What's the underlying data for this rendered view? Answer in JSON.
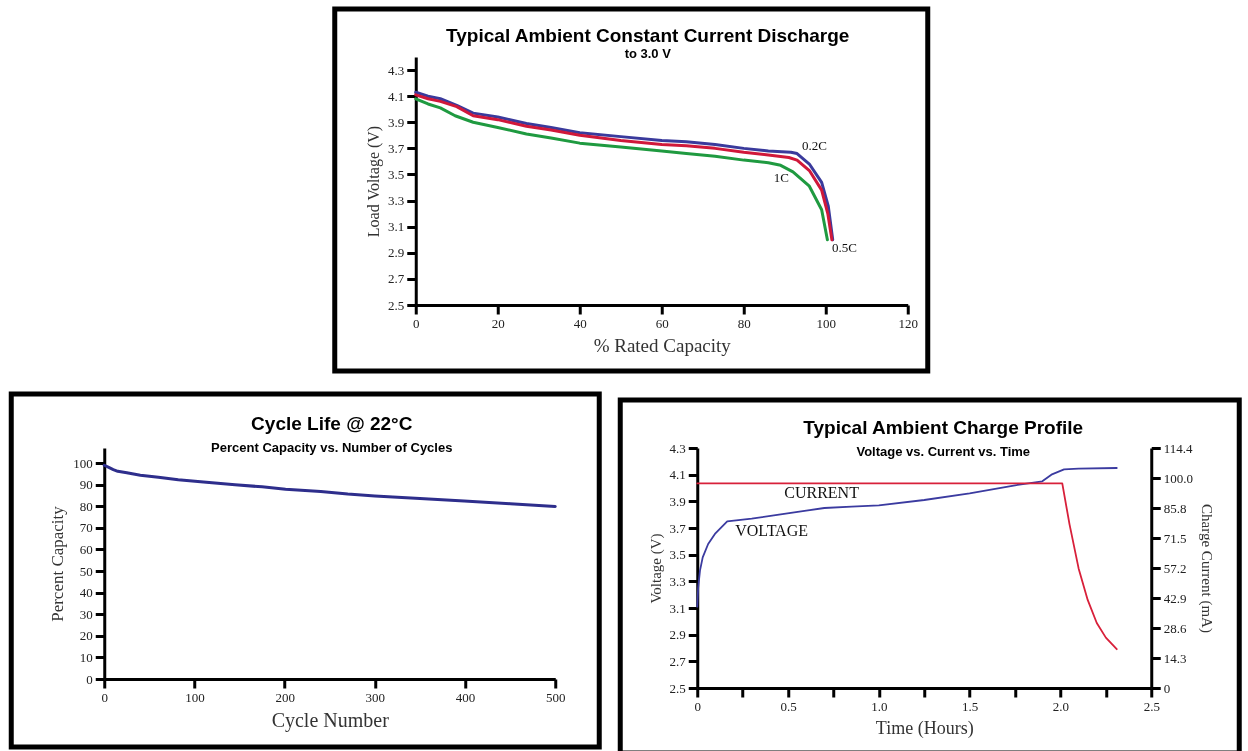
{
  "chart_data": [
    {
      "type": "line",
      "title": "Typical Ambient Constant Current Discharge",
      "subtitle": "to 3.0 V",
      "xlabel": "% Rated Capacity",
      "ylabel": "Load Voltage (V)",
      "xlim": [
        0,
        120
      ],
      "ylim": [
        2.5,
        4.4
      ],
      "xticks": [
        0,
        20,
        40,
        60,
        80,
        100,
        120
      ],
      "yticks": [
        2.5,
        2.7,
        2.9,
        3.1,
        3.3,
        3.5,
        3.7,
        3.9,
        4.1,
        4.3
      ],
      "series": [
        {
          "name": "0.2C",
          "color": "#3a3a9c",
          "x": [
            0,
            3,
            6,
            10,
            14,
            20,
            27,
            33,
            40,
            50,
            60,
            66,
            73,
            80,
            86,
            91.5,
            93,
            96,
            99,
            100.6,
            101.7
          ],
          "values": [
            4.13,
            4.1,
            4.08,
            4.03,
            3.97,
            3.94,
            3.89,
            3.86,
            3.82,
            3.79,
            3.76,
            3.75,
            3.73,
            3.7,
            3.68,
            3.67,
            3.66,
            3.58,
            3.44,
            3.26,
            3.0
          ]
        },
        {
          "name": "0.5C",
          "color": "#d0183a",
          "x": [
            0,
            3,
            6,
            10,
            14,
            20,
            27,
            33,
            40,
            50,
            60,
            66,
            73,
            80,
            86,
            91,
            93,
            96,
            99,
            100.5,
            101.5
          ],
          "values": [
            4.11,
            4.08,
            4.06,
            4.02,
            3.95,
            3.92,
            3.87,
            3.84,
            3.8,
            3.76,
            3.73,
            3.72,
            3.7,
            3.67,
            3.65,
            3.63,
            3.61,
            3.53,
            3.38,
            3.2,
            3.0
          ]
        },
        {
          "name": "1C",
          "color": "#1f9a40",
          "x": [
            0,
            3,
            6,
            9.6,
            14,
            20,
            27,
            33,
            40,
            50,
            60,
            66,
            73,
            80,
            86,
            89,
            92,
            96,
            99,
            100.4
          ],
          "values": [
            4.08,
            4.04,
            4.01,
            3.95,
            3.9,
            3.86,
            3.81,
            3.78,
            3.74,
            3.71,
            3.68,
            3.66,
            3.64,
            3.61,
            3.59,
            3.57,
            3.52,
            3.41,
            3.23,
            3.0
          ]
        }
      ]
    },
    {
      "type": "line",
      "title": "Cycle Life @ 22°C",
      "subtitle": "Percent Capacity vs. Number of Cycles",
      "xlabel": "Cycle Number",
      "ylabel": "Percent Capacity",
      "xlim": [
        0,
        500
      ],
      "ylim": [
        0,
        107
      ],
      "xticks": [
        0,
        100,
        200,
        300,
        400,
        500
      ],
      "yticks": [
        0,
        10,
        20,
        30,
        40,
        50,
        60,
        70,
        80,
        90,
        100
      ],
      "series": [
        {
          "color": "#2e2e8c",
          "x": [
            0,
            5,
            10,
            15,
            25,
            40,
            60,
            82,
            110,
            145,
            175,
            201,
            240,
            270,
            300,
            350,
            399,
            450,
            500
          ],
          "values": [
            99,
            98,
            97,
            96.2,
            95.5,
            94.4,
            93.4,
            92.3,
            91.2,
            90,
            89,
            87.9,
            86.9,
            85.7,
            84.8,
            83.6,
            82.5,
            81.2,
            79.9
          ]
        }
      ]
    },
    {
      "type": "line",
      "title": "Typical Ambient Charge Profile",
      "subtitle": "Voltage vs. Current vs. Time",
      "xlabel": "Time (Hours)",
      "ylabel": "Voltage (V)",
      "y2label": "Charge Current (mA)",
      "xlim": [
        0,
        2.5
      ],
      "ylim": [
        2.5,
        4.3
      ],
      "y2lim": [
        0,
        114.4
      ],
      "xticks": [
        0,
        {
          "value": 0.25,
          "label": null
        },
        0.5,
        {
          "value": 0.75,
          "label": null
        },
        {
          "value": 1,
          "label": "1.0"
        },
        {
          "value": 1.25,
          "label": null
        },
        1.5,
        {
          "value": 1.75,
          "label": null
        },
        {
          "value": 2,
          "label": "2.0"
        },
        {
          "value": 2.25,
          "label": null
        },
        2.5
      ],
      "yticks": [
        2.5,
        2.7,
        2.9,
        3.1,
        3.3,
        3.5,
        3.7,
        3.9,
        4.1,
        4.3
      ],
      "y2ticks": [
        0,
        14.3,
        28.6,
        42.9,
        57.2,
        71.5,
        85.8,
        {
          "value": 100,
          "label": "100.0"
        },
        114.4
      ],
      "series": [
        {
          "name": "VOLTAGE",
          "color": "#3b3ba0",
          "x": [
            0,
            0.005,
            0.015,
            0.03,
            0.06,
            0.1,
            0.165,
            0.3,
            0.45,
            0.6,
            0.7,
            0.85,
            1.0,
            1.25,
            1.5,
            1.75,
            1.9,
            1.95,
            2.02,
            2.1,
            2.31
          ],
          "values": [
            3.11,
            3.25,
            3.38,
            3.48,
            3.58,
            3.66,
            3.75,
            3.77,
            3.8,
            3.83,
            3.85,
            3.86,
            3.87,
            3.91,
            3.96,
            4.02,
            4.05,
            4.1,
            4.14,
            4.145,
            4.15
          ]
        },
        {
          "name": "CURRENT",
          "axis": "y2",
          "color": "#d8203a",
          "x": [
            0,
            2.01,
            2.05,
            2.1,
            2.15,
            2.2,
            2.25,
            2.31
          ],
          "values": [
            97.5,
            97.5,
            78,
            57,
            42,
            31,
            24,
            18.5
          ]
        }
      ]
    }
  ]
}
